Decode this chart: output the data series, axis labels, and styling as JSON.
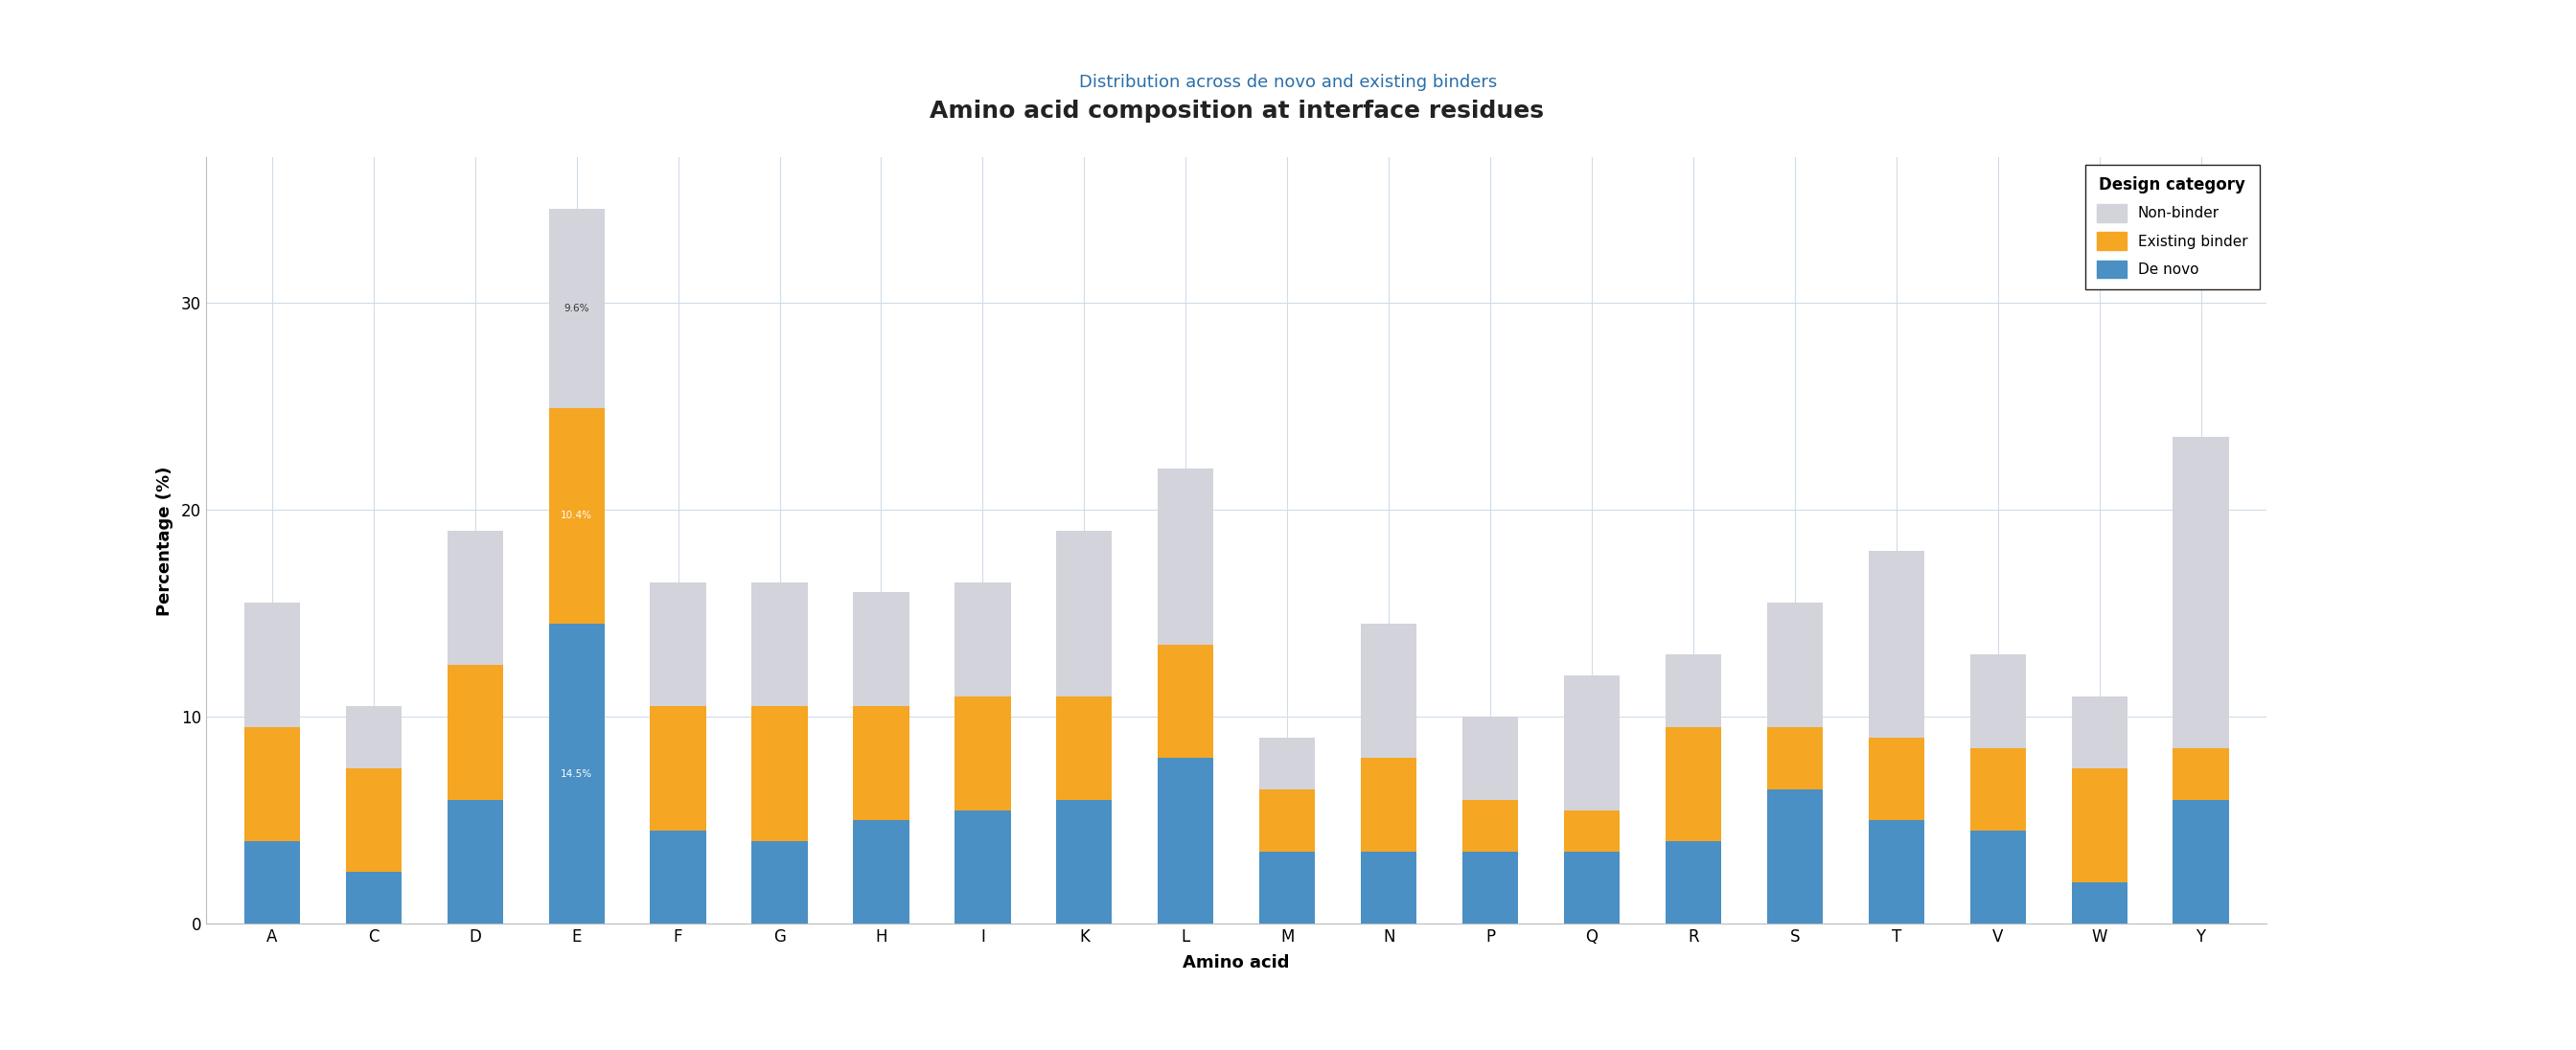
{
  "title": "Amino acid composition at interface residues",
  "subtitle": "Distribution across de novo and existing binders",
  "xlabel": "Amino acid",
  "ylabel": "Percentage (%)",
  "amino_acids": [
    "A",
    "C",
    "D",
    "E",
    "F",
    "G",
    "H",
    "I",
    "K",
    "L",
    "M",
    "N",
    "P",
    "Q",
    "R",
    "S",
    "T",
    "V",
    "W",
    "Y"
  ],
  "de_novo": [
    4.0,
    2.5,
    6.0,
    14.5,
    4.5,
    4.0,
    5.0,
    5.5,
    6.0,
    8.0,
    3.5,
    3.5,
    3.5,
    3.5,
    4.0,
    6.5,
    5.0,
    4.5,
    2.0,
    6.0
  ],
  "existing_binder": [
    5.5,
    5.0,
    6.5,
    10.4,
    6.0,
    6.5,
    5.5,
    5.5,
    5.0,
    5.5,
    3.0,
    4.5,
    2.5,
    2.0,
    5.5,
    3.0,
    4.0,
    4.0,
    5.5,
    2.5
  ],
  "non_binder": [
    6.0,
    3.0,
    6.5,
    9.6,
    6.0,
    6.0,
    5.5,
    5.5,
    8.0,
    8.5,
    2.5,
    6.5,
    4.0,
    6.5,
    3.5,
    6.0,
    9.0,
    4.5,
    3.5,
    15.0
  ],
  "color_non_binder": "#d3d3db",
  "color_existing_binder": "#f5a623",
  "color_de_novo": "#4a90c4",
  "annotation_E_nonbinder": "9.6%",
  "annotation_E_existing": "10.4%",
  "annotation_E_denovo": "14.5%",
  "ylim": [
    0,
    37
  ],
  "yticks": [
    0,
    10,
    20,
    30
  ],
  "background_color": "#ffffff",
  "plot_bg_color": "#f8f9fc",
  "grid_color": "#d0dce8",
  "title_fontsize": 18,
  "subtitle_fontsize": 13,
  "label_fontsize": 13,
  "tick_fontsize": 12,
  "legend_title": "Design category",
  "legend_labels": [
    "Non-binder",
    "Existing binder",
    "De novo"
  ]
}
